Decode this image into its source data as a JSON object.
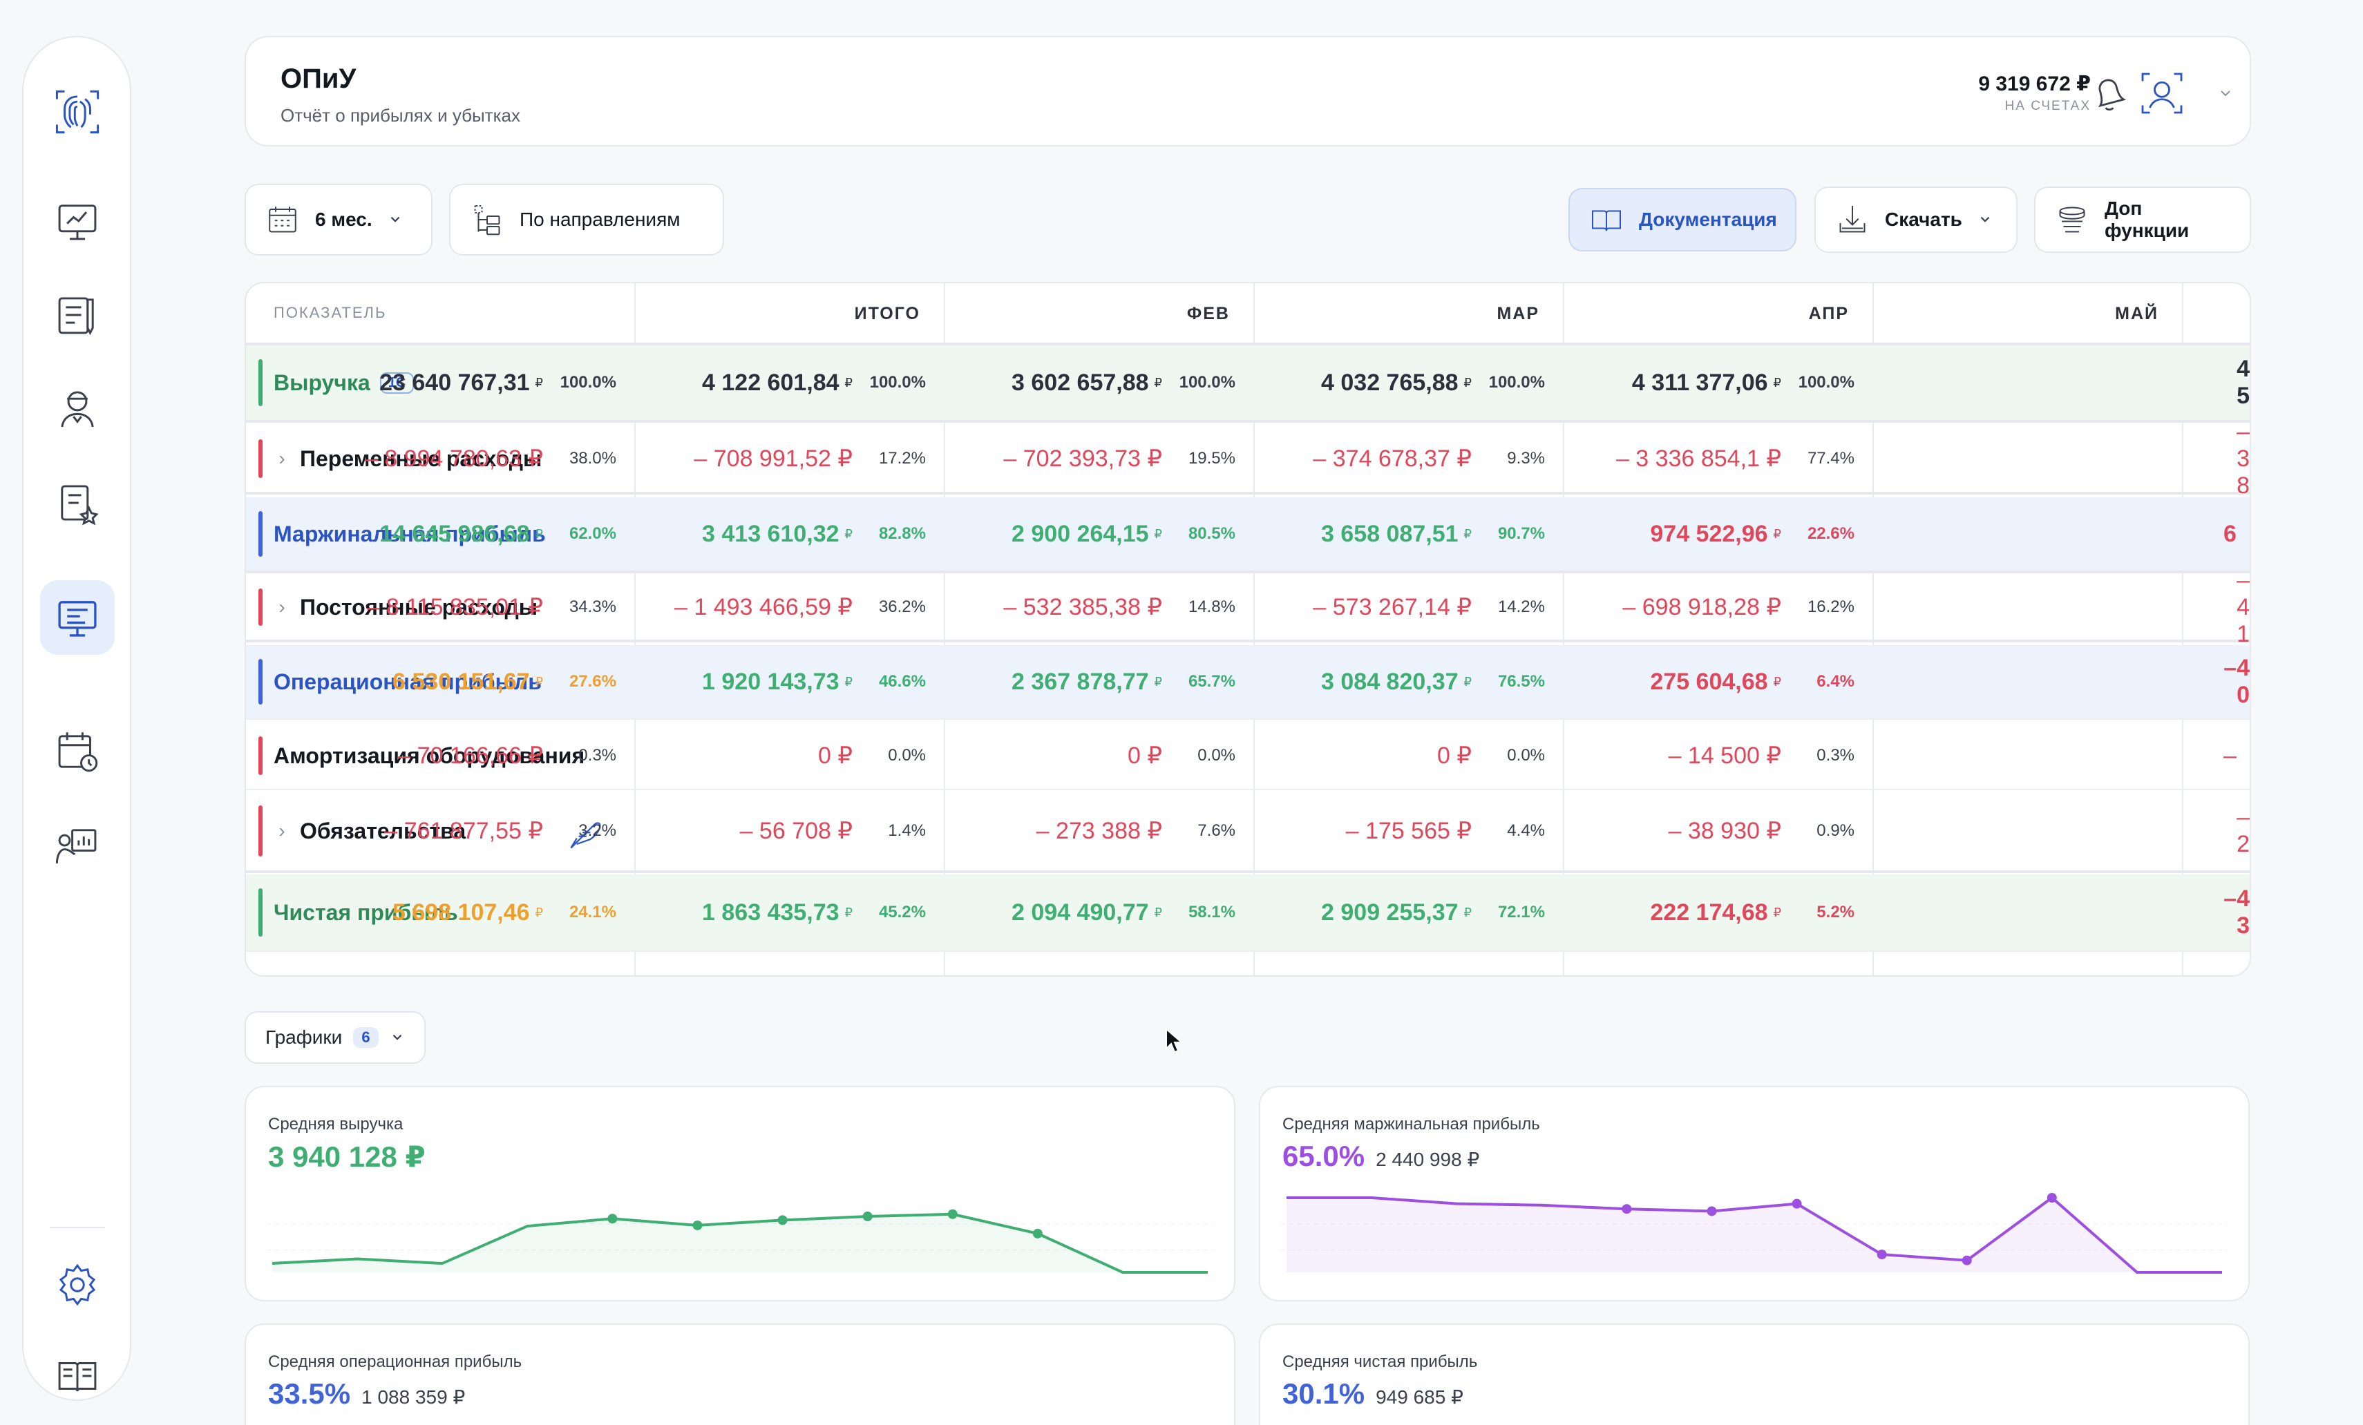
{
  "header": {
    "title": "ОПиУ",
    "subtitle": "Отчёт о прибылях и убытках",
    "balance": "9 319 672 ₽",
    "balance_label": "НА СЧЕТАХ"
  },
  "toolbar": {
    "period": "6 мес.",
    "grouping": "По направлениям",
    "docs": "Документация",
    "download": "Скачать",
    "extra": "Доп функции"
  },
  "table": {
    "headers": [
      "ПОКАЗАТЕЛЬ",
      "ИТОГО",
      "ФЕВ",
      "МАР",
      "АПР",
      "МАЙ"
    ],
    "rows": [
      {
        "label": "Выручка",
        "tag": "1С",
        "cells": [
          [
            "23 640 767,31",
            "100.0%"
          ],
          [
            "4 122 601,84",
            "100.0%"
          ],
          [
            "3 602 657,88",
            "100.0%"
          ],
          [
            "4 032 765,88",
            "100.0%"
          ],
          [
            "4 311 377,06",
            "100.0%"
          ],
          [
            "4 5",
            ""
          ]
        ]
      },
      {
        "label": "Переменные расходы",
        "cells": [
          [
            "– 8 994 780,63 ₽",
            "38.0%"
          ],
          [
            "– 708 991,52 ₽",
            "17.2%"
          ],
          [
            "– 702 393,73 ₽",
            "19.5%"
          ],
          [
            "– 374 678,37 ₽",
            "9.3%"
          ],
          [
            "– 3 336 854,1 ₽",
            "77.4%"
          ],
          [
            "– 3 8",
            ""
          ]
        ]
      },
      {
        "label": "Маржинальная прибыль",
        "cells": [
          [
            "14 645 986,68",
            "62.0%"
          ],
          [
            "3 413 610,32",
            "82.8%"
          ],
          [
            "2 900 264,15",
            "80.5%"
          ],
          [
            "3 658 087,51",
            "90.7%"
          ],
          [
            "974 522,96",
            "22.6%"
          ],
          [
            "6",
            ""
          ]
        ]
      },
      {
        "label": "Постоянные расходы",
        "cells": [
          [
            "– 8 115 835,01 ₽",
            "34.3%"
          ],
          [
            "– 1 493 466,59 ₽",
            "36.2%"
          ],
          [
            "– 532 385,38 ₽",
            "14.8%"
          ],
          [
            "– 573 267,14 ₽",
            "14.2%"
          ],
          [
            "– 698 918,28 ₽",
            "16.2%"
          ],
          [
            "– 4 1",
            ""
          ]
        ]
      },
      {
        "label": "Операционная прибыль",
        "cells": [
          [
            "6 530 151,67",
            "27.6%"
          ],
          [
            "1 920 143,73",
            "46.6%"
          ],
          [
            "2 367 878,77",
            "65.7%"
          ],
          [
            "3 084 820,37",
            "76.5%"
          ],
          [
            "275 604,68",
            "6.4%"
          ],
          [
            "–4 0",
            ""
          ]
        ]
      },
      {
        "label": "Амортизация оборудования",
        "cells": [
          [
            "– 70 166,66 ₽",
            "0.3%"
          ],
          [
            "0 ₽",
            "0.0%"
          ],
          [
            "0 ₽",
            "0.0%"
          ],
          [
            "0 ₽",
            "0.0%"
          ],
          [
            "– 14 500 ₽",
            "0.3%"
          ],
          [
            "–",
            ""
          ]
        ]
      },
      {
        "label": "Обязательства",
        "cells": [
          [
            "– 761 877,55 ₽",
            "3.2%"
          ],
          [
            "– 56 708 ₽",
            "1.4%"
          ],
          [
            "– 273 388 ₽",
            "7.6%"
          ],
          [
            "– 175 565 ₽",
            "4.4%"
          ],
          [
            "– 38 930 ₽",
            "0.9%"
          ],
          [
            "– 2",
            ""
          ]
        ]
      },
      {
        "label": "Чистая прибыль",
        "cells": [
          [
            "5 698 107,46",
            "24.1%"
          ],
          [
            "1 863 435,73",
            "45.2%"
          ],
          [
            "2 094 490,77",
            "58.1%"
          ],
          [
            "2 909 255,37",
            "72.1%"
          ],
          [
            "222 174,68",
            "5.2%"
          ],
          [
            "–4 3",
            ""
          ]
        ]
      }
    ],
    "currency_small": "₽"
  },
  "charts": {
    "toggle_label": "Графики",
    "toggle_count": "6",
    "cards": [
      {
        "title": "Средняя выручка",
        "value": "3 940 128 ₽",
        "sub": "",
        "color": "#3fae72"
      },
      {
        "title": "Средняя маржинальная прибыль",
        "value": "65.0%",
        "sub": "2 440 998 ₽",
        "color": "#9c4fe0"
      },
      {
        "title": "Средняя операционная прибыль",
        "value": "33.5%",
        "sub": "1 088 359 ₽",
        "color": "#3f63d8"
      },
      {
        "title": "Средняя чистая прибыль",
        "value": "30.1%",
        "sub": "949 685 ₽",
        "color": "#3f63d8"
      }
    ]
  },
  "chart_data": [
    {
      "type": "area",
      "title": "Средняя выручка",
      "x": [
        1,
        2,
        3,
        4,
        5,
        6,
        7,
        8,
        9,
        10,
        11,
        12
      ],
      "values": [
        0.12,
        0.18,
        0.12,
        0.62,
        0.72,
        0.63,
        0.7,
        0.75,
        0.78,
        0.52,
        0.0,
        0.0
      ],
      "markers": [
        5,
        6,
        7,
        8,
        9,
        10
      ]
    },
    {
      "type": "area",
      "title": "Средняя маржинальная прибыль",
      "x": [
        1,
        2,
        3,
        4,
        5,
        6,
        7,
        8,
        9,
        10,
        11,
        12
      ],
      "values": [
        1.0,
        1.0,
        0.92,
        0.9,
        0.85,
        0.82,
        0.92,
        0.24,
        0.16,
        1.0,
        0.0,
        0.0
      ],
      "markers": [
        5,
        6,
        7,
        8,
        9,
        10
      ]
    }
  ],
  "colors": {
    "green": "#3fae72",
    "red": "#e0475b",
    "orange": "#f0a02a",
    "blue": "#2a53c4",
    "green_row_bg": "#eef8f1",
    "blue_row_bg": "#edf3fd"
  }
}
